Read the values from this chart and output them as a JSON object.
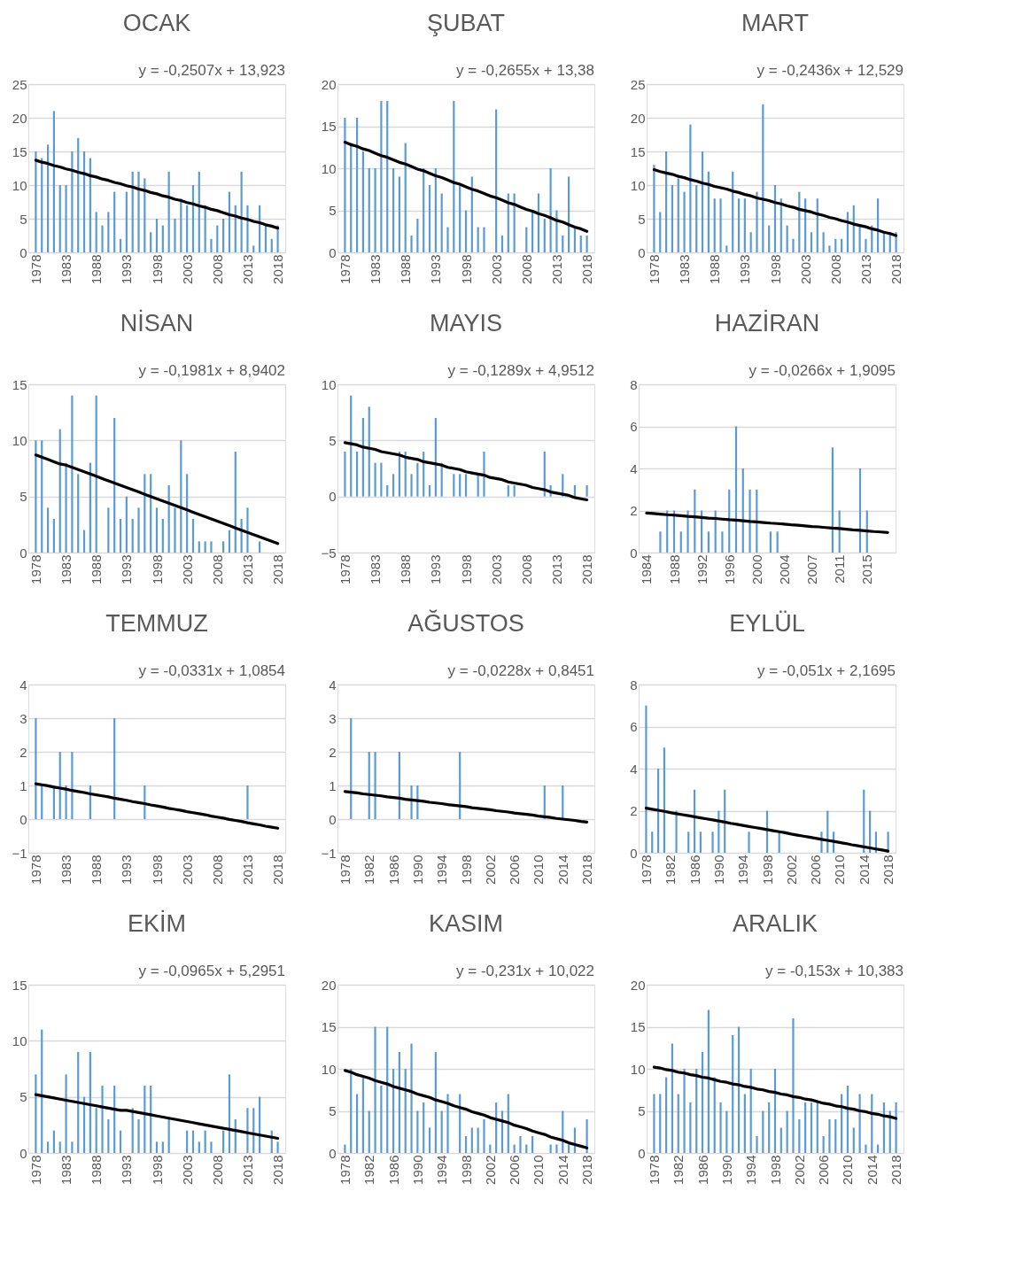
{
  "chart_data": [
    {
      "type": "bar",
      "title": "OCAK",
      "annotations": [
        "y = -0,2507x + 13,923"
      ],
      "x": [
        1978,
        1979,
        1980,
        1981,
        1982,
        1983,
        1984,
        1985,
        1986,
        1987,
        1988,
        1989,
        1990,
        1991,
        1992,
        1993,
        1994,
        1995,
        1996,
        1997,
        1998,
        1999,
        2000,
        2001,
        2002,
        2003,
        2004,
        2005,
        2006,
        2007,
        2008,
        2009,
        2010,
        2011,
        2012,
        2013,
        2014,
        2015,
        2016,
        2017,
        2018
      ],
      "xlim": [
        1977.5,
        2018.5
      ],
      "xticks": [
        1978,
        1983,
        1988,
        1993,
        1998,
        2003,
        2008,
        2013,
        2018
      ],
      "ylim": [
        0,
        25
      ],
      "yticks": [
        0,
        5,
        10,
        15,
        20,
        25
      ],
      "grid": "y",
      "series": [
        {
          "color": "#5b9bd5",
          "values": [
            15,
            14,
            16,
            21,
            10,
            10,
            15,
            17,
            15,
            14,
            6,
            4,
            6,
            9,
            2,
            9,
            12,
            12,
            11,
            3,
            5,
            4,
            12,
            5,
            8,
            7,
            10,
            12,
            7,
            2,
            4,
            5,
            9,
            7,
            12,
            7,
            1,
            7,
            4,
            2,
            4
          ]
        },
        {
          "type": "line",
          "color": "#000000",
          "values": [
            13.7,
            13.4,
            13.2,
            12.9,
            12.7,
            12.4,
            12.2,
            11.9,
            11.7,
            11.4,
            11.2,
            10.9,
            10.7,
            10.4,
            10.2,
            9.9,
            9.7,
            9.4,
            9.2,
            8.9,
            8.7,
            8.4,
            8.2,
            7.9,
            7.7,
            7.4,
            7.2,
            6.9,
            6.7,
            6.4,
            6.2,
            5.9,
            5.6,
            5.4,
            5.1,
            4.9,
            4.6,
            4.4,
            4.1,
            3.9,
            3.6
          ]
        }
      ]
    },
    {
      "type": "bar",
      "title": "ŞUBAT",
      "annotations": [
        "y = -0,2655x + 13,38"
      ],
      "x": [
        1978,
        1979,
        1980,
        1981,
        1982,
        1983,
        1984,
        1985,
        1986,
        1987,
        1988,
        1989,
        1990,
        1991,
        1992,
        1993,
        1994,
        1995,
        1996,
        1997,
        1998,
        1999,
        2000,
        2001,
        2002,
        2003,
        2004,
        2005,
        2006,
        2007,
        2008,
        2009,
        2010,
        2011,
        2012,
        2013,
        2014,
        2015,
        2016,
        2017,
        2018
      ],
      "xlim": [
        1977.5,
        2018.5
      ],
      "xticks": [
        1978,
        1983,
        1988,
        1993,
        1998,
        2003,
        2008,
        2013,
        2018
      ],
      "ylim": [
        0,
        20
      ],
      "yticks": [
        0,
        5,
        10,
        15,
        20
      ],
      "grid": "y",
      "series": [
        {
          "color": "#5b9bd5",
          "values": [
            16,
            13,
            16,
            12,
            10,
            10,
            18,
            18,
            10,
            9,
            13,
            2,
            4,
            10,
            8,
            10,
            7,
            3,
            18,
            8,
            5,
            9,
            3,
            3,
            0,
            17,
            2,
            7,
            7,
            0,
            3,
            5,
            7,
            4,
            10,
            5,
            2,
            9,
            3,
            2,
            2
          ]
        },
        {
          "type": "line",
          "color": "#000000",
          "values": [
            13.1,
            12.8,
            12.6,
            12.3,
            12.1,
            11.8,
            11.5,
            11.3,
            11.0,
            10.7,
            10.5,
            10.2,
            9.9,
            9.7,
            9.4,
            9.1,
            8.9,
            8.6,
            8.3,
            8.1,
            7.8,
            7.5,
            7.3,
            7.0,
            6.7,
            6.5,
            6.2,
            5.9,
            5.7,
            5.4,
            5.1,
            4.9,
            4.6,
            4.4,
            4.1,
            3.8,
            3.6,
            3.3,
            3.0,
            2.8,
            2.5
          ]
        }
      ]
    },
    {
      "type": "bar",
      "title": "MART",
      "annotations": [
        "y = -0,2436x + 12,529"
      ],
      "x": [
        1978,
        1979,
        1980,
        1981,
        1982,
        1983,
        1984,
        1985,
        1986,
        1987,
        1988,
        1989,
        1990,
        1991,
        1992,
        1993,
        1994,
        1995,
        1996,
        1997,
        1998,
        1999,
        2000,
        2001,
        2002,
        2003,
        2004,
        2005,
        2006,
        2007,
        2008,
        2009,
        2010,
        2011,
        2012,
        2013,
        2014,
        2015,
        2016,
        2017,
        2018
      ],
      "xlim": [
        1977.5,
        2018.5
      ],
      "xticks": [
        1978,
        1983,
        1988,
        1993,
        1998,
        2003,
        2008,
        2013,
        2018
      ],
      "ylim": [
        0,
        25
      ],
      "yticks": [
        0,
        5,
        10,
        15,
        20,
        25
      ],
      "grid": "y",
      "series": [
        {
          "color": "#5b9bd5",
          "values": [
            13,
            6,
            15,
            10,
            11,
            9,
            19,
            10,
            15,
            12,
            8,
            8,
            1,
            12,
            8,
            8,
            3,
            9,
            22,
            4,
            10,
            8,
            4,
            2,
            9,
            8,
            3,
            8,
            3,
            1,
            2,
            2,
            6,
            7,
            4,
            2,
            4,
            8,
            3,
            3,
            3
          ]
        },
        {
          "type": "line",
          "color": "#000000",
          "values": [
            12.3,
            12.0,
            11.8,
            11.6,
            11.3,
            11.1,
            10.8,
            10.6,
            10.3,
            10.1,
            9.8,
            9.6,
            9.4,
            9.1,
            8.9,
            8.6,
            8.4,
            8.1,
            7.9,
            7.7,
            7.4,
            7.2,
            6.9,
            6.7,
            6.4,
            6.2,
            6.0,
            5.7,
            5.5,
            5.2,
            5.0,
            4.7,
            4.5,
            4.2,
            4.0,
            3.8,
            3.5,
            3.3,
            3.0,
            2.8,
            2.5
          ]
        }
      ]
    },
    {
      "type": "bar",
      "title": "NİSAN",
      "annotations": [
        "y = -0,1981x + 8,9402"
      ],
      "x": [
        1978,
        1979,
        1980,
        1981,
        1982,
        1983,
        1984,
        1985,
        1986,
        1987,
        1988,
        1989,
        1990,
        1991,
        1992,
        1993,
        1994,
        1995,
        1996,
        1997,
        1998,
        1999,
        2000,
        2001,
        2002,
        2003,
        2004,
        2005,
        2006,
        2007,
        2008,
        2009,
        2010,
        2011,
        2012,
        2013,
        2014,
        2015,
        2016,
        2017,
        2018
      ],
      "xlim": [
        1977.5,
        2018.5
      ],
      "xticks": [
        1978,
        1983,
        1988,
        1993,
        1998,
        2003,
        2008,
        2013,
        2018
      ],
      "ylim": [
        0,
        15
      ],
      "yticks": [
        0,
        5,
        10,
        15
      ],
      "grid": "y",
      "series": [
        {
          "color": "#5b9bd5",
          "values": [
            10,
            10,
            4,
            3,
            11,
            8,
            14,
            7,
            2,
            8,
            14,
            0,
            4,
            12,
            3,
            5,
            3,
            4,
            7,
            7,
            4,
            3,
            6,
            4,
            10,
            7,
            3,
            1,
            1,
            1,
            0,
            1,
            2,
            9,
            3,
            4,
            0,
            1,
            0,
            0,
            0
          ]
        },
        {
          "type": "line",
          "color": "#000000",
          "values": [
            8.7,
            8.5,
            8.3,
            8.1,
            7.9,
            7.8,
            7.6,
            7.4,
            7.2,
            7.0,
            6.8,
            6.6,
            6.4,
            6.2,
            6.0,
            5.8,
            5.6,
            5.4,
            5.2,
            5.0,
            4.8,
            4.6,
            4.4,
            4.2,
            4.0,
            3.8,
            3.6,
            3.4,
            3.2,
            3.0,
            2.8,
            2.6,
            2.4,
            2.2,
            2.0,
            1.8,
            1.6,
            1.4,
            1.2,
            1.0,
            0.8
          ]
        }
      ]
    },
    {
      "type": "bar",
      "title": "MAYIS",
      "annotations": [
        "y = -0,1289x + 4,9512"
      ],
      "x": [
        1978,
        1979,
        1980,
        1981,
        1982,
        1983,
        1984,
        1985,
        1986,
        1987,
        1988,
        1989,
        1990,
        1991,
        1992,
        1993,
        1994,
        1995,
        1996,
        1997,
        1998,
        1999,
        2000,
        2001,
        2002,
        2003,
        2004,
        2005,
        2006,
        2007,
        2008,
        2009,
        2010,
        2011,
        2012,
        2013,
        2014,
        2015,
        2016,
        2017,
        2018
      ],
      "xlim": [
        1977.5,
        2018.5
      ],
      "xticks": [
        1978,
        1983,
        1988,
        1993,
        1998,
        2003,
        2008,
        2013,
        2018
      ],
      "ylim": [
        -5,
        10
      ],
      "yticks": [
        -5,
        0,
        5,
        10
      ],
      "grid": "y",
      "series": [
        {
          "color": "#5b9bd5",
          "values": [
            4,
            9,
            4,
            7,
            8,
            3,
            3,
            1,
            2,
            4,
            4,
            2,
            3,
            4,
            1,
            7,
            3,
            0,
            2,
            2,
            2,
            0,
            2,
            4,
            0,
            0,
            0,
            1,
            1,
            0,
            0,
            0,
            0,
            4,
            1,
            0,
            2,
            0,
            1,
            0,
            1
          ]
        },
        {
          "type": "line",
          "color": "#000000",
          "values": [
            4.8,
            4.7,
            4.6,
            4.4,
            4.3,
            4.2,
            4.0,
            3.9,
            3.8,
            3.7,
            3.5,
            3.4,
            3.3,
            3.1,
            3.0,
            2.9,
            2.8,
            2.6,
            2.5,
            2.4,
            2.2,
            2.1,
            2.0,
            1.9,
            1.7,
            1.6,
            1.5,
            1.3,
            1.2,
            1.1,
            1.0,
            0.8,
            0.7,
            0.6,
            0.4,
            0.3,
            0.2,
            0.1,
            -0.1,
            -0.2,
            -0.3
          ]
        }
      ]
    },
    {
      "type": "bar",
      "title": "HAZİRAN",
      "annotations": [
        "y = -0,0266x + 1,9095"
      ],
      "categories": [
        "1984",
        null,
        null,
        null,
        "1988",
        null,
        null,
        null,
        "1992",
        null,
        null,
        null,
        "1996",
        null,
        null,
        null,
        "2000",
        null,
        null,
        null,
        "2004",
        null,
        null,
        null,
        "2007",
        null,
        null,
        null,
        "2011",
        null,
        null,
        null,
        "2015",
        null,
        null,
        null
      ],
      "ylim": [
        0,
        8
      ],
      "yticks": [
        0,
        2,
        4,
        6,
        8
      ],
      "grid": "y",
      "series": [
        {
          "color": "#5b9bd5",
          "values": [
            0,
            0,
            1,
            2,
            2,
            1,
            2,
            3,
            2,
            1,
            2,
            1,
            3,
            6,
            4,
            3,
            3,
            0,
            1,
            1,
            0,
            0,
            0,
            0,
            0,
            0,
            0,
            5,
            2,
            0,
            0,
            4,
            2,
            0,
            0,
            0
          ]
        },
        {
          "type": "line",
          "color": "#000000",
          "values": [
            1.88,
            1.86,
            1.83,
            1.8,
            1.78,
            1.75,
            1.72,
            1.7,
            1.67,
            1.64,
            1.62,
            1.59,
            1.56,
            1.54,
            1.51,
            1.48,
            1.46,
            1.43,
            1.4,
            1.38,
            1.35,
            1.32,
            1.3,
            1.27,
            1.24,
            1.22,
            1.19,
            1.16,
            1.14,
            1.11,
            1.08,
            1.06,
            1.03,
            1.0,
            0.98,
            0.95
          ]
        }
      ]
    },
    {
      "type": "bar",
      "title": "TEMMUZ",
      "annotations": [
        "y = -0,0331x + 1,0854"
      ],
      "x": [
        1978,
        1979,
        1980,
        1981,
        1982,
        1983,
        1984,
        1985,
        1986,
        1987,
        1988,
        1989,
        1990,
        1991,
        1992,
        1993,
        1994,
        1995,
        1996,
        1997,
        1998,
        1999,
        2000,
        2001,
        2002,
        2003,
        2004,
        2005,
        2006,
        2007,
        2008,
        2009,
        2010,
        2011,
        2012,
        2013,
        2014,
        2015,
        2016,
        2017,
        2018
      ],
      "xlim": [
        1977.5,
        2018.5
      ],
      "xticks": [
        1978,
        1983,
        1988,
        1993,
        1998,
        2003,
        2008,
        2013,
        2018
      ],
      "ylim": [
        -1,
        4
      ],
      "yticks": [
        -1,
        0,
        1,
        2,
        3,
        4
      ],
      "grid": "y",
      "series": [
        {
          "color": "#5b9bd5",
          "values": [
            3,
            1,
            0,
            1,
            2,
            1,
            2,
            0,
            0,
            1,
            0,
            0,
            0,
            3,
            0,
            0,
            0,
            0,
            1,
            0,
            0,
            0,
            0,
            0,
            0,
            0,
            0,
            0,
            0,
            0,
            0,
            0,
            0,
            0,
            0,
            1,
            0,
            0,
            0,
            0,
            0
          ]
        },
        {
          "type": "line",
          "color": "#000000",
          "values": [
            1.05,
            1.02,
            0.99,
            0.95,
            0.92,
            0.89,
            0.85,
            0.82,
            0.79,
            0.75,
            0.72,
            0.69,
            0.66,
            0.62,
            0.59,
            0.56,
            0.52,
            0.49,
            0.46,
            0.42,
            0.39,
            0.36,
            0.32,
            0.29,
            0.26,
            0.22,
            0.19,
            0.16,
            0.13,
            0.09,
            0.06,
            0.03,
            -0.01,
            -0.04,
            -0.07,
            -0.11,
            -0.14,
            -0.17,
            -0.21,
            -0.24,
            -0.27
          ]
        }
      ]
    },
    {
      "type": "bar",
      "title": "AĞUSTOS",
      "annotations": [
        "y = -0,0228x + 0,8451"
      ],
      "x": [
        1978,
        1979,
        1980,
        1981,
        1982,
        1983,
        1984,
        1985,
        1986,
        1987,
        1988,
        1989,
        1990,
        1991,
        1992,
        1993,
        1994,
        1995,
        1996,
        1997,
        1998,
        1999,
        2000,
        2001,
        2002,
        2003,
        2004,
        2005,
        2006,
        2007,
        2008,
        2009,
        2010,
        2011,
        2012,
        2013,
        2014,
        2015,
        2016,
        2017,
        2018
      ],
      "xlim": [
        1977.5,
        2018.5
      ],
      "xticks": [
        1978,
        1982,
        1986,
        1990,
        1994,
        1998,
        2002,
        2006,
        2010,
        2014,
        2018
      ],
      "ylim": [
        -1,
        4
      ],
      "yticks": [
        -1,
        0,
        1,
        2,
        3,
        4
      ],
      "grid": "y",
      "series": [
        {
          "color": "#5b9bd5",
          "values": [
            0,
            3,
            0,
            0,
            2,
            2,
            0,
            0,
            0,
            2,
            0,
            1,
            1,
            0,
            0,
            0,
            0,
            0,
            0,
            2,
            0,
            0,
            0,
            0,
            0,
            0,
            0,
            0,
            0,
            0,
            0,
            0,
            0,
            1,
            0,
            0,
            1,
            0,
            0,
            0,
            0
          ]
        },
        {
          "type": "line",
          "color": "#000000",
          "values": [
            0.82,
            0.8,
            0.78,
            0.75,
            0.73,
            0.71,
            0.69,
            0.66,
            0.64,
            0.62,
            0.59,
            0.57,
            0.55,
            0.53,
            0.5,
            0.48,
            0.46,
            0.43,
            0.41,
            0.39,
            0.37,
            0.34,
            0.32,
            0.3,
            0.28,
            0.25,
            0.23,
            0.21,
            0.18,
            0.16,
            0.14,
            0.12,
            0.09,
            0.07,
            0.05,
            0.02,
            0.0,
            -0.02,
            -0.04,
            -0.07,
            -0.09
          ]
        }
      ]
    },
    {
      "type": "bar",
      "title": "EYLÜL",
      "annotations": [
        "y = -0,051x + 2,1695"
      ],
      "x": [
        1978,
        1979,
        1980,
        1981,
        1982,
        1983,
        1984,
        1985,
        1986,
        1987,
        1988,
        1989,
        1990,
        1991,
        1992,
        1993,
        1994,
        1995,
        1996,
        1997,
        1998,
        1999,
        2000,
        2001,
        2002,
        2003,
        2004,
        2005,
        2006,
        2007,
        2008,
        2009,
        2010,
        2011,
        2012,
        2013,
        2014,
        2015,
        2016,
        2017,
        2018
      ],
      "xlim": [
        1977.5,
        2018.5
      ],
      "xticks": [
        1978,
        1982,
        1986,
        1990,
        1994,
        1998,
        2002,
        2006,
        2010,
        2014,
        2018
      ],
      "ylim": [
        0,
        8
      ],
      "yticks": [
        0,
        2,
        4,
        6,
        8
      ],
      "grid": "y",
      "series": [
        {
          "color": "#5b9bd5",
          "values": [
            7,
            1,
            4,
            5,
            0,
            2,
            0,
            1,
            3,
            1,
            0,
            1,
            2,
            3,
            0,
            0,
            0,
            1,
            0,
            0,
            2,
            0,
            1,
            0,
            0,
            0,
            0,
            0,
            0,
            1,
            2,
            1,
            0,
            0,
            0,
            0,
            3,
            2,
            1,
            0,
            1
          ]
        },
        {
          "type": "line",
          "color": "#000000",
          "values": [
            2.12,
            2.07,
            2.02,
            1.97,
            1.91,
            1.86,
            1.81,
            1.76,
            1.71,
            1.66,
            1.61,
            1.56,
            1.51,
            1.46,
            1.4,
            1.35,
            1.3,
            1.25,
            1.2,
            1.15,
            1.1,
            1.05,
            1.0,
            0.95,
            0.89,
            0.84,
            0.79,
            0.74,
            0.69,
            0.64,
            0.59,
            0.54,
            0.49,
            0.44,
            0.38,
            0.33,
            0.28,
            0.23,
            0.18,
            0.13,
            0.08
          ]
        }
      ]
    },
    {
      "type": "bar",
      "title": "EKİM",
      "annotations": [
        "y = -0,0965x + 5,2951"
      ],
      "x": [
        1978,
        1979,
        1980,
        1981,
        1982,
        1983,
        1984,
        1985,
        1986,
        1987,
        1988,
        1989,
        1990,
        1991,
        1992,
        1993,
        1994,
        1995,
        1996,
        1997,
        1998,
        1999,
        2000,
        2001,
        2002,
        2003,
        2004,
        2005,
        2006,
        2007,
        2008,
        2009,
        2010,
        2011,
        2012,
        2013,
        2014,
        2015,
        2016,
        2017,
        2018
      ],
      "xlim": [
        1977.5,
        2018.5
      ],
      "xticks": [
        1978,
        1983,
        1988,
        1993,
        1998,
        2003,
        2008,
        2013,
        2018
      ],
      "ylim": [
        0,
        15
      ],
      "yticks": [
        0,
        5,
        10,
        15
      ],
      "grid": "y",
      "series": [
        {
          "color": "#5b9bd5",
          "values": [
            7,
            11,
            1,
            2,
            1,
            7,
            1,
            9,
            5,
            9,
            4,
            6,
            3,
            6,
            2,
            0,
            4,
            3,
            6,
            6,
            1,
            1,
            3,
            0,
            0,
            2,
            2,
            1,
            2,
            1,
            0,
            2,
            7,
            3,
            0,
            4,
            4,
            5,
            0,
            2,
            1
          ]
        },
        {
          "type": "line",
          "color": "#000000",
          "values": [
            5.2,
            5.1,
            5.0,
            4.9,
            4.8,
            4.7,
            4.6,
            4.5,
            4.4,
            4.3,
            4.2,
            4.1,
            4.0,
            3.9,
            3.8,
            3.8,
            3.7,
            3.6,
            3.5,
            3.4,
            3.3,
            3.2,
            3.1,
            3.0,
            2.9,
            2.8,
            2.7,
            2.6,
            2.5,
            2.4,
            2.3,
            2.2,
            2.1,
            2.0,
            1.9,
            1.8,
            1.7,
            1.6,
            1.5,
            1.4,
            1.3
          ]
        }
      ]
    },
    {
      "type": "bar",
      "title": "KASIM",
      "annotations": [
        "y = -0,231x + 10,022"
      ],
      "x": [
        1978,
        1979,
        1980,
        1981,
        1982,
        1983,
        1984,
        1985,
        1986,
        1987,
        1988,
        1989,
        1990,
        1991,
        1992,
        1993,
        1994,
        1995,
        1996,
        1997,
        1998,
        1999,
        2000,
        2001,
        2002,
        2003,
        2004,
        2005,
        2006,
        2007,
        2008,
        2009,
        2010,
        2011,
        2012,
        2013,
        2014,
        2015,
        2016,
        2017,
        2018
      ],
      "xlim": [
        1977.5,
        2018.5
      ],
      "xticks": [
        1978,
        1982,
        1986,
        1990,
        1994,
        1998,
        2002,
        2006,
        2010,
        2014,
        2018
      ],
      "ylim": [
        0,
        20
      ],
      "yticks": [
        0,
        5,
        10,
        15,
        20
      ],
      "grid": "y",
      "series": [
        {
          "color": "#5b9bd5",
          "values": [
            1,
            10,
            7,
            9,
            5,
            15,
            8,
            15,
            10,
            12,
            10,
            13,
            5,
            6,
            3,
            12,
            5,
            7,
            0,
            7,
            2,
            3,
            3,
            4,
            1,
            6,
            5,
            7,
            1,
            2,
            1,
            2,
            0,
            0,
            1,
            1,
            5,
            1,
            3,
            0,
            4
          ]
        },
        {
          "type": "line",
          "color": "#000000",
          "values": [
            9.8,
            9.6,
            9.3,
            9.1,
            8.9,
            8.6,
            8.4,
            8.2,
            7.9,
            7.7,
            7.5,
            7.3,
            7.0,
            6.8,
            6.6,
            6.3,
            6.1,
            5.9,
            5.6,
            5.4,
            5.2,
            4.9,
            4.7,
            4.5,
            4.2,
            4.0,
            3.8,
            3.6,
            3.3,
            3.1,
            2.9,
            2.6,
            2.4,
            2.2,
            1.9,
            1.7,
            1.5,
            1.2,
            1.0,
            0.8,
            0.6
          ]
        }
      ]
    },
    {
      "type": "bar",
      "title": "ARALIK",
      "annotations": [
        "y = -0,153x + 10,383"
      ],
      "x": [
        1978,
        1979,
        1980,
        1981,
        1982,
        1983,
        1984,
        1985,
        1986,
        1987,
        1988,
        1989,
        1990,
        1991,
        1992,
        1993,
        1994,
        1995,
        1996,
        1997,
        1998,
        1999,
        2000,
        2001,
        2002,
        2003,
        2004,
        2005,
        2006,
        2007,
        2008,
        2009,
        2010,
        2011,
        2012,
        2013,
        2014,
        2015,
        2016,
        2017,
        2018
      ],
      "xlim": [
        1977.5,
        2018.5
      ],
      "xticks": [
        1978,
        1982,
        1986,
        1990,
        1994,
        1998,
        2002,
        2006,
        2010,
        2014,
        2018
      ],
      "ylim": [
        0,
        20
      ],
      "yticks": [
        0,
        5,
        10,
        15,
        20
      ],
      "grid": "y",
      "series": [
        {
          "color": "#5b9bd5",
          "values": [
            7,
            7,
            9,
            13,
            7,
            10,
            6,
            10,
            12,
            17,
            9,
            6,
            5,
            14,
            15,
            7,
            10,
            2,
            5,
            6,
            10,
            3,
            5,
            16,
            4,
            6,
            6,
            6,
            2,
            4,
            4,
            7,
            8,
            3,
            7,
            1,
            7,
            1,
            6,
            5,
            6
          ]
        },
        {
          "type": "line",
          "color": "#000000",
          "values": [
            10.2,
            10.1,
            9.9,
            9.8,
            9.6,
            9.5,
            9.3,
            9.2,
            9.0,
            8.9,
            8.7,
            8.5,
            8.4,
            8.2,
            8.1,
            7.9,
            7.8,
            7.6,
            7.5,
            7.3,
            7.2,
            7.0,
            6.9,
            6.7,
            6.6,
            6.4,
            6.3,
            6.1,
            5.9,
            5.8,
            5.6,
            5.5,
            5.3,
            5.2,
            5.0,
            4.9,
            4.7,
            4.6,
            4.4,
            4.3,
            4.1
          ]
        }
      ]
    }
  ]
}
